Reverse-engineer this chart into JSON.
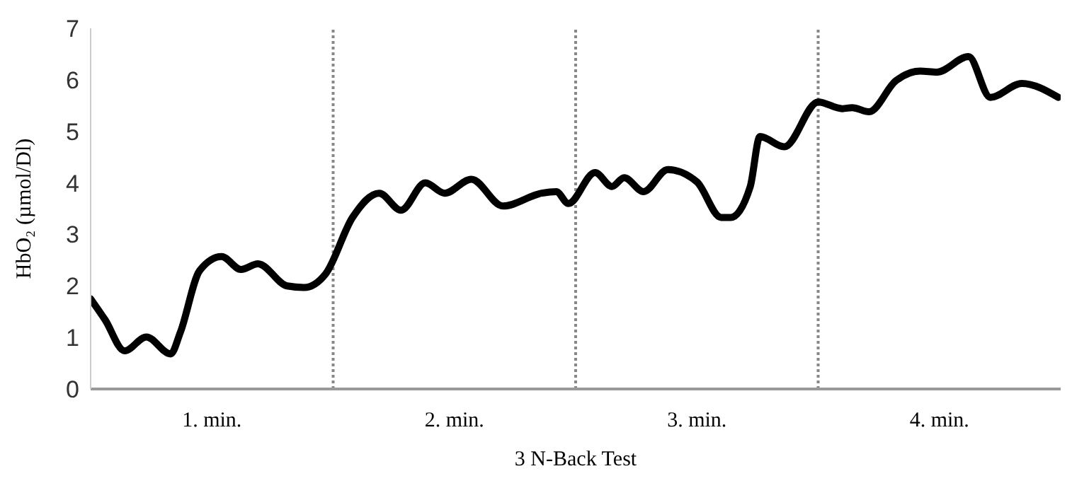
{
  "chart_data": {
    "type": "line",
    "xlabel": "3 N-Back Test",
    "ylabel": "HbO₂ (µmol/Dl)",
    "x": [
      0,
      0.06,
      0.14,
      0.23,
      0.33,
      0.37,
      0.45,
      0.54,
      0.62,
      0.69,
      0.81,
      0.88,
      0.97,
      1.08,
      1.19,
      1.28,
      1.38,
      1.46,
      1.57,
      1.7,
      1.86,
      1.92,
      1.97,
      2.08,
      2.15,
      2.2,
      2.28,
      2.38,
      2.5,
      2.6,
      2.64,
      2.72,
      2.76,
      2.86,
      3.0,
      3.1,
      3.14,
      3.21,
      3.32,
      3.42,
      3.49,
      3.62,
      3.71,
      3.84,
      3.99
    ],
    "series": [
      {
        "color": "#000000",
        "values": [
          1.75,
          1.34,
          0.74,
          1.01,
          0.68,
          1.1,
          2.3,
          2.57,
          2.32,
          2.43,
          2.0,
          1.97,
          2.24,
          3.33,
          3.8,
          3.47,
          4.0,
          3.8,
          4.07,
          3.55,
          3.8,
          3.83,
          3.6,
          4.2,
          3.93,
          4.1,
          3.83,
          4.26,
          4.02,
          3.33,
          3.33,
          3.93,
          4.9,
          4.7,
          5.57,
          5.44,
          5.46,
          5.38,
          5.98,
          6.17,
          6.15,
          6.45,
          5.66,
          5.93,
          5.66
        ]
      }
    ],
    "xlim": [
      0,
      4
    ],
    "xticks": [
      {
        "value": 0.5,
        "label": "1. min."
      },
      {
        "value": 1.5,
        "label": "2. min."
      },
      {
        "value": 2.5,
        "label": "3. min."
      },
      {
        "value": 3.5,
        "label": "4. min."
      }
    ],
    "ylim": [
      0,
      7
    ],
    "yticks": [
      0,
      1,
      2,
      3,
      4,
      5,
      6,
      7
    ],
    "grid": false,
    "legend": false,
    "marker": "none",
    "line_style": "solid",
    "ref_lines": [
      {
        "axis": "x",
        "value": 1,
        "color": "#888888",
        "line_style": "dotted"
      },
      {
        "axis": "x",
        "value": 2,
        "color": "#888888",
        "line_style": "dotted"
      },
      {
        "axis": "x",
        "value": 3,
        "color": "#888888",
        "line_style": "dotted"
      }
    ]
  }
}
